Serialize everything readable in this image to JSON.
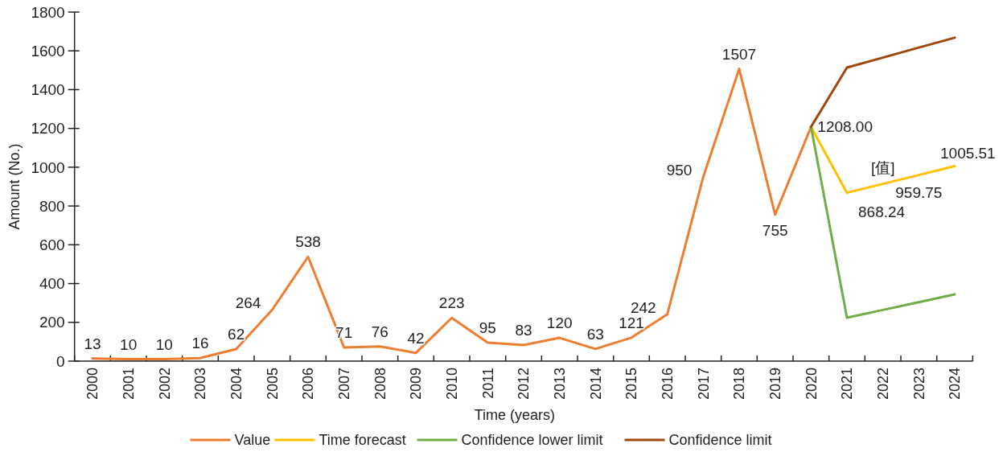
{
  "chart_data": {
    "type": "line",
    "xlabel": "Time (years)",
    "ylabel": "Amount (No.)",
    "categories": [
      "2000",
      "2001",
      "2002",
      "2003",
      "2004",
      "2005",
      "2006",
      "2007",
      "2008",
      "2009",
      "2010",
      "2011",
      "2012",
      "2013",
      "2014",
      "2015",
      "2016",
      "2017",
      "2018",
      "2019",
      "2020",
      "2021",
      "2022",
      "2023",
      "2024"
    ],
    "ylim": [
      0,
      1800
    ],
    "yticks": [
      0,
      200,
      400,
      600,
      800,
      1000,
      1200,
      1400,
      1600,
      1800
    ],
    "grid": false,
    "legend": "bottom",
    "marker": "none",
    "line_style": "solid",
    "series": [
      {
        "name": "Value",
        "color": "#ed7d31",
        "values": [
          13,
          10,
          10,
          16,
          62,
          264,
          538,
          71,
          76,
          42,
          223,
          95,
          83,
          120,
          63,
          121,
          242,
          950,
          1507,
          755,
          1208,
          null,
          null,
          null,
          null
        ],
        "value_labels": [
          "13",
          "10",
          "10",
          "16",
          "62",
          "264",
          "538",
          "71",
          "76",
          "42",
          "223",
          "95",
          "83",
          "120",
          "63",
          "121",
          "242",
          "950",
          "1507",
          "755",
          null,
          null,
          null,
          null,
          null
        ]
      },
      {
        "name": "Time forecast",
        "color": "#ffc000",
        "values": [
          null,
          null,
          null,
          null,
          null,
          null,
          null,
          null,
          null,
          null,
          null,
          null,
          null,
          null,
          null,
          null,
          null,
          null,
          null,
          null,
          1208,
          868.24,
          914,
          959.75,
          1005.51
        ],
        "value_labels": [
          null,
          null,
          null,
          null,
          null,
          null,
          null,
          null,
          null,
          null,
          null,
          null,
          null,
          null,
          null,
          null,
          null,
          null,
          null,
          null,
          "1208.00",
          "868.24",
          "[值]",
          "959.75",
          "1005.51"
        ]
      },
      {
        "name": "Confidence lower limit",
        "color": "#70ad47",
        "values": [
          null,
          null,
          null,
          null,
          null,
          null,
          null,
          null,
          null,
          null,
          null,
          null,
          null,
          null,
          null,
          null,
          null,
          null,
          null,
          null,
          1208,
          224,
          264,
          304,
          344
        ]
      },
      {
        "name": "Confidence limit",
        "color": "#9e480e",
        "values": [
          null,
          null,
          null,
          null,
          null,
          null,
          null,
          null,
          null,
          null,
          null,
          null,
          null,
          null,
          null,
          null,
          null,
          null,
          null,
          null,
          1208,
          1514,
          1565,
          1617,
          1668
        ]
      }
    ]
  }
}
